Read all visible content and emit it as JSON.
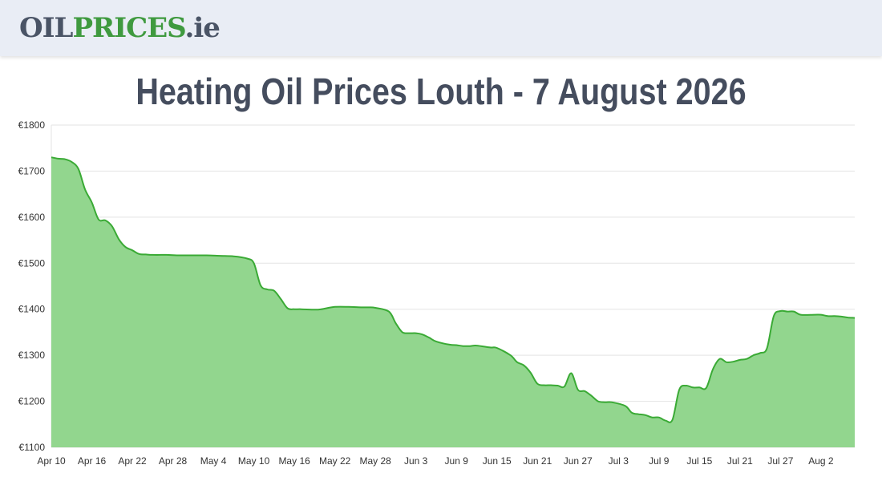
{
  "header": {
    "logo_part1": "OIL",
    "logo_part2": "PRICES",
    "logo_part3": ".ie",
    "logo_colors": {
      "dark": "#4a5466",
      "green": "#3f9a3f"
    }
  },
  "page": {
    "title": "Heating Oil Prices Louth - 7 August 2026"
  },
  "chart_data": {
    "type": "area",
    "title": "Heating Oil Prices Louth - 7 August 2026",
    "xlabel": "",
    "ylabel": "",
    "ylim": [
      1100,
      1800
    ],
    "yticks": [
      1100,
      1200,
      1300,
      1400,
      1500,
      1600,
      1700,
      1800
    ],
    "ytick_labels": [
      "€1100",
      "€1200",
      "€1300",
      "€1400",
      "€1500",
      "€1600",
      "€1700",
      "€1800"
    ],
    "xticks": [
      "Apr 10",
      "Apr 16",
      "Apr 22",
      "Apr 28",
      "May 4",
      "May 10",
      "May 16",
      "May 22",
      "May 28",
      "Jun 3",
      "Jun 9",
      "Jun 15",
      "Jun 21",
      "Jun 27",
      "Jul 3",
      "Jul 9",
      "Jul 15",
      "Jul 21",
      "Jul 27",
      "Aug 2"
    ],
    "x_start": "2026-04-10",
    "x_end": "2026-08-07",
    "grid": true,
    "line_color": "#3aaa35",
    "fill_color": "#92d68e",
    "series": [
      {
        "x": [
          "2026-04-10",
          "2026-04-11",
          "2026-04-12",
          "2026-04-13",
          "2026-04-14",
          "2026-04-15",
          "2026-04-16",
          "2026-04-17",
          "2026-04-18",
          "2026-04-19",
          "2026-04-20",
          "2026-04-21",
          "2026-04-22",
          "2026-04-23",
          "2026-04-24",
          "2026-04-25",
          "2026-04-27",
          "2026-04-29",
          "2026-05-01",
          "2026-05-03",
          "2026-05-05",
          "2026-05-07",
          "2026-05-09",
          "2026-05-10",
          "2026-05-11",
          "2026-05-12",
          "2026-05-13",
          "2026-05-14",
          "2026-05-15",
          "2026-05-16",
          "2026-05-17",
          "2026-05-19",
          "2026-05-20",
          "2026-05-22",
          "2026-05-24",
          "2026-05-26",
          "2026-05-27",
          "2026-05-28",
          "2026-05-30",
          "2026-05-31",
          "2026-06-01",
          "2026-06-02",
          "2026-06-03",
          "2026-06-04",
          "2026-06-05",
          "2026-06-06",
          "2026-06-08",
          "2026-06-09",
          "2026-06-10",
          "2026-06-11",
          "2026-06-12",
          "2026-06-14",
          "2026-06-15",
          "2026-06-17",
          "2026-06-18",
          "2026-06-19",
          "2026-06-20",
          "2026-06-21",
          "2026-06-22",
          "2026-06-23",
          "2026-06-24",
          "2026-06-25",
          "2026-06-26",
          "2026-06-27",
          "2026-06-28",
          "2026-06-29",
          "2026-06-30",
          "2026-07-01",
          "2026-07-02",
          "2026-07-04",
          "2026-07-05",
          "2026-07-06",
          "2026-07-07",
          "2026-07-08",
          "2026-07-09",
          "2026-07-10",
          "2026-07-11",
          "2026-07-12",
          "2026-07-13",
          "2026-07-14",
          "2026-07-15",
          "2026-07-16",
          "2026-07-17",
          "2026-07-18",
          "2026-07-19",
          "2026-07-20",
          "2026-07-21",
          "2026-07-22",
          "2026-07-23",
          "2026-07-24",
          "2026-07-25",
          "2026-07-26",
          "2026-07-27",
          "2026-07-28",
          "2026-07-29",
          "2026-07-30",
          "2026-08-01",
          "2026-08-02",
          "2026-08-03",
          "2026-08-04",
          "2026-08-05",
          "2026-08-06",
          "2026-08-07"
        ],
        "y": [
          1730,
          1727,
          1726,
          1720,
          1705,
          1660,
          1632,
          1595,
          1593,
          1580,
          1552,
          1535,
          1528,
          1520,
          1519,
          1518,
          1518,
          1517,
          1517,
          1517,
          1516,
          1515,
          1510,
          1500,
          1452,
          1443,
          1440,
          1422,
          1402,
          1400,
          1400,
          1399,
          1400,
          1405,
          1405,
          1404,
          1404,
          1403,
          1395,
          1370,
          1350,
          1348,
          1348,
          1345,
          1338,
          1330,
          1323,
          1322,
          1320,
          1320,
          1321,
          1317,
          1316,
          1300,
          1285,
          1278,
          1262,
          1238,
          1235,
          1235,
          1234,
          1232,
          1261,
          1225,
          1222,
          1212,
          1200,
          1198,
          1198,
          1190,
          1175,
          1172,
          1170,
          1165,
          1165,
          1158,
          1160,
          1225,
          1234,
          1230,
          1230,
          1229,
          1270,
          1292,
          1285,
          1286,
          1290,
          1292,
          1300,
          1305,
          1315,
          1385,
          1396,
          1395,
          1395,
          1388,
          1388,
          1388,
          1385,
          1385,
          1384,
          1382,
          1381
        ]
      }
    ]
  }
}
